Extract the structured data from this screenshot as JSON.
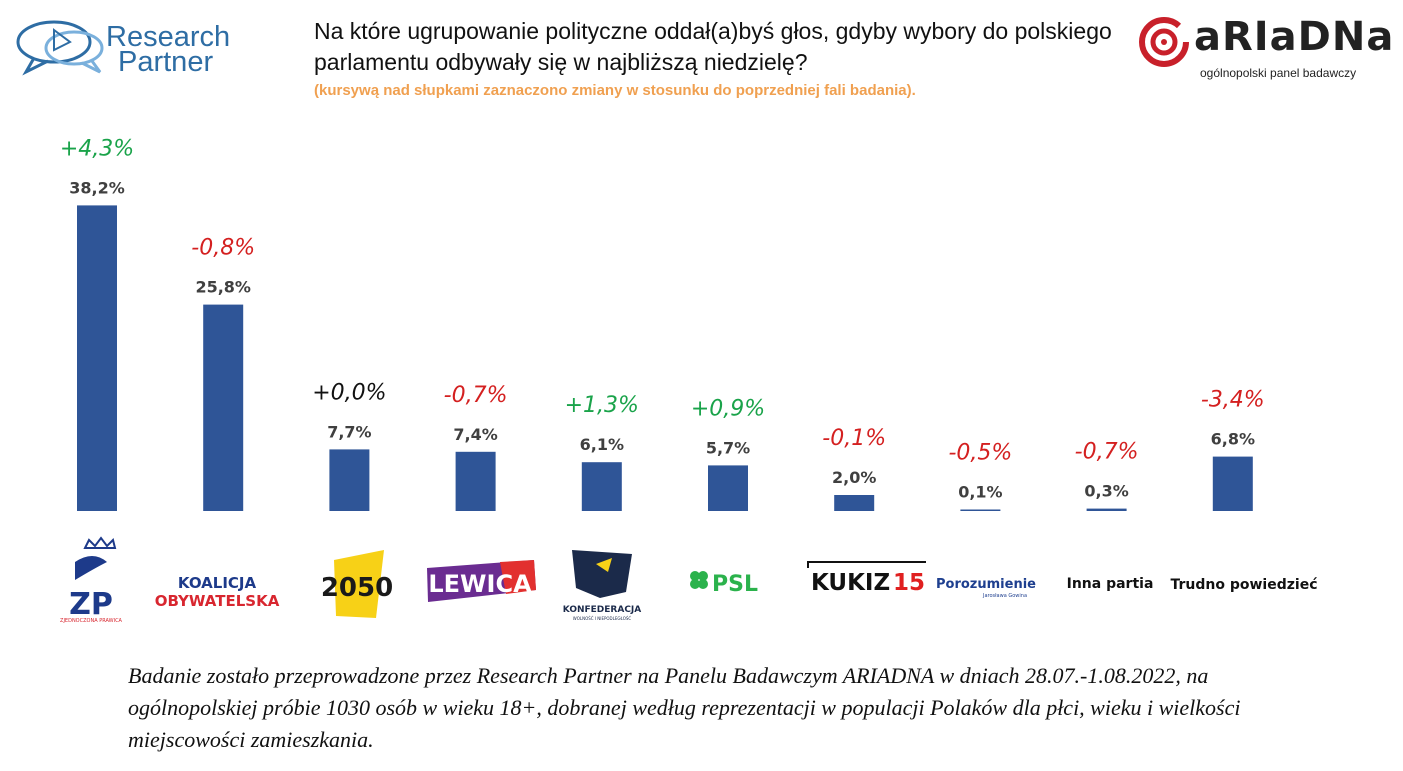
{
  "header": {
    "brand_left_line1": "Research",
    "brand_left_line2": "Partner",
    "brand_right_name": "aRIaDNa",
    "brand_right_tagline": "ogólnopolski panel badawczy"
  },
  "chart_data": {
    "type": "bar",
    "title": "Na które ugrupowanie polityczne oddał(a)byś głos, gdyby wybory do polskiego parlamentu odbywały się w najbliższą niedzielę?",
    "subtitle": "(kursywą nad słupkami zaznaczono zmiany w stosunku do poprzedniej fali badania).",
    "categories": [
      "ZP",
      "KOALICJA OBYWATELSKA",
      "2050",
      "LEWICA",
      "KONFEDERACJA",
      "PSL",
      "KUKIZ15",
      "Porozumienie",
      "Inna partia",
      "Trudno powiedzieć"
    ],
    "values": [
      38.2,
      25.8,
      7.7,
      7.4,
      6.1,
      5.7,
      2.0,
      0.1,
      0.3,
      6.8
    ],
    "value_labels": [
      "38,2%",
      "25,8%",
      "7,7%",
      "7,4%",
      "6,1%",
      "5,7%",
      "2,0%",
      "0,1%",
      "0,3%",
      "6,8%"
    ],
    "change_labels": [
      "+4,3%",
      "-0,8%",
      "+0,0%",
      "-0,7%",
      "+1,3%",
      "+0,9%",
      "-0,1%",
      "-0,5%",
      "-0,7%",
      "-3,4%"
    ],
    "changes": [
      4.3,
      -0.8,
      0.0,
      -0.7,
      1.3,
      0.9,
      -0.1,
      -0.5,
      -0.7,
      -3.4
    ],
    "ylim": [
      0,
      40
    ],
    "grid": false,
    "bar_color": "#2f5597",
    "positive_color": "#1aa34a",
    "negative_color": "#d42020",
    "neutral_color": "#111111"
  },
  "logos": {
    "zp_text": "ZP",
    "zp_sub": "ZJEDNOCZONA PRAWICA",
    "ko_line1": "KOALICJA",
    "ko_line2": "OBYWATELSKA",
    "p2050_text": "2050",
    "lewica_text": "LEWICA",
    "konf_text": "KONFEDERACJA",
    "konf_sub": "WOLNOŚĆ I NIEPODLEGŁOŚĆ",
    "psl_text": "PSL",
    "kukiz_text": "KUKIZ",
    "kukiz_num": "15",
    "poro_text": "Porozumienie",
    "poro_sub": "Jarosława Gowina",
    "inna_text": "Inna partia",
    "trudno_text": "Trudno powiedzieć"
  },
  "colors": {
    "ko_blue": "#1d3a8a",
    "ko_red": "#d8262f",
    "p2050_yellow": "#f7d117",
    "lewica_purple": "#6a2c91",
    "lewica_red": "#e2302f",
    "konf_navy": "#1b2a4a",
    "psl_green": "#2bb24c",
    "kukiz_red": "#e02020",
    "poro_blue": "#1e3f8f",
    "ariadna_red": "#c8202a",
    "rp_blue": "#2e6da4"
  },
  "footnote": "Badanie zostało przeprowadzone przez Research Partner na Panelu Badawczym ARIADNA w dniach 28.07.-1.08.2022, na ogólnopolskiej próbie 1030 osób w wieku 18+, dobranej według reprezentacji w populacji Polaków dla płci, wieku i wielkości miejscowości zamieszkania."
}
